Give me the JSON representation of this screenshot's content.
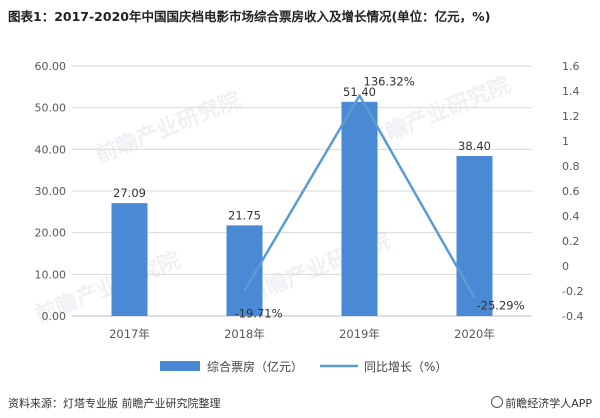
{
  "title": "图表1：2017-2020年中国国庆档电影市场综合票房收入及增长情况(单位：亿元，%)",
  "watermark": "前瞻产业研究院",
  "footer": {
    "source": "资料来源：灯塔专业版 前瞻产业研究院整理",
    "brand": "前瞻经济学人APP"
  },
  "colors": {
    "bar": "#4a8ad4",
    "line": "#5b9bd5",
    "axis_text": "#595959",
    "grid": "#d9d9d9"
  },
  "chart_data": {
    "type": "bar+line",
    "categories": [
      "2017年",
      "2018年",
      "2019年",
      "2020年"
    ],
    "series": [
      {
        "name": "综合票房（亿元）",
        "kind": "bar",
        "axis": "left",
        "values": [
          27.09,
          21.75,
          51.4,
          38.4
        ],
        "labels": [
          "27.09",
          "21.75",
          "51.40",
          "38.40"
        ]
      },
      {
        "name": "同比增长（%）",
        "kind": "line",
        "axis": "right",
        "values": [
          null,
          -0.1971,
          1.3632,
          -0.2529
        ],
        "labels": [
          "",
          "-19.71%",
          "136.32%",
          "-25.29%"
        ]
      }
    ],
    "y_left": {
      "min": 0,
      "max": 60,
      "step": 10,
      "ticks": [
        "0.00",
        "10.00",
        "20.00",
        "30.00",
        "40.00",
        "50.00",
        "60.00"
      ]
    },
    "y_right": {
      "min": -0.4,
      "max": 1.6,
      "step": 0.2,
      "ticks": [
        "-0.4",
        "-0.2",
        "0",
        "0.2",
        "0.4",
        "0.6",
        "0.8",
        "1",
        "1.2",
        "1.4",
        "1.6"
      ]
    },
    "grid": true,
    "legend_position": "bottom"
  }
}
